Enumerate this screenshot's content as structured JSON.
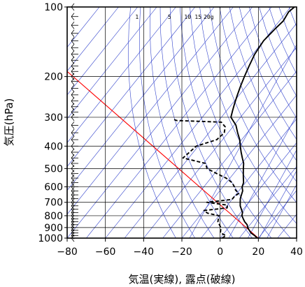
{
  "chart_data": {
    "type": "skew-t",
    "xlabel": "気温(実線), 露点(破線)",
    "ylabel": "気圧(hPa)",
    "xlim": [
      -80,
      40
    ],
    "ylim": [
      1000,
      100
    ],
    "y_scale": "log",
    "x_ticks": [
      -80,
      -60,
      -40,
      -20,
      0,
      20,
      40
    ],
    "x_tick_labels": [
      "−80",
      "−60",
      "−40",
      "−20",
      "0",
      "20",
      "40"
    ],
    "y_ticks": [
      100,
      200,
      300,
      400,
      500,
      600,
      700,
      800,
      900,
      1000
    ],
    "y_tick_labels": [
      "100",
      "200",
      "300",
      "400",
      "500",
      "600",
      "700",
      "800",
      "900",
      "1000"
    ],
    "mixing_ratio_labels": [
      "1",
      "5",
      "10",
      "15",
      "20g"
    ],
    "series": [
      {
        "style": "solid",
        "points": [
          [
            1000,
            19.5
          ],
          [
            975,
            17
          ],
          [
            950,
            14
          ],
          [
            925,
            12
          ],
          [
            900,
            10
          ],
          [
            875,
            8.5
          ],
          [
            850,
            6
          ],
          [
            825,
            4
          ],
          [
            800,
            2
          ],
          [
            775,
            1
          ],
          [
            750,
            -1
          ],
          [
            725,
            -3
          ],
          [
            700,
            -4.5
          ],
          [
            675,
            -6
          ],
          [
            650,
            -7
          ],
          [
            625,
            -8
          ],
          [
            600,
            -10
          ],
          [
            575,
            -11
          ],
          [
            550,
            -13
          ],
          [
            525,
            -15
          ],
          [
            500,
            -17
          ],
          [
            475,
            -19
          ],
          [
            450,
            -22
          ],
          [
            425,
            -25
          ],
          [
            400,
            -28
          ],
          [
            375,
            -31
          ],
          [
            350,
            -35
          ],
          [
            325,
            -39
          ],
          [
            300,
            -45
          ],
          [
            280,
            -47
          ],
          [
            260,
            -49
          ],
          [
            240,
            -51
          ],
          [
            220,
            -53
          ],
          [
            200,
            -55
          ],
          [
            180,
            -57
          ],
          [
            160,
            -59
          ],
          [
            140,
            -60
          ],
          [
            125,
            -59
          ],
          [
            115,
            -58
          ],
          [
            105,
            -59
          ],
          [
            100,
            -58
          ]
        ]
      },
      {
        "style": "dashed",
        "points": [
          [
            1000,
            1
          ],
          [
            975,
            2
          ],
          [
            950,
            -2
          ],
          [
            925,
            -3
          ],
          [
            900,
            -4
          ],
          [
            875,
            -6
          ],
          [
            850,
            -8
          ],
          [
            825,
            -9
          ],
          [
            800,
            -10
          ],
          [
            780,
            -17
          ],
          [
            760,
            -20
          ],
          [
            740,
            -9
          ],
          [
            720,
            -10
          ],
          [
            700,
            -22
          ],
          [
            680,
            -10
          ],
          [
            660,
            -10
          ],
          [
            640,
            -9
          ],
          [
            620,
            -12
          ],
          [
            600,
            -14
          ],
          [
            575,
            -17
          ],
          [
            550,
            -22
          ],
          [
            525,
            -29
          ],
          [
            500,
            -36
          ],
          [
            475,
            -39
          ],
          [
            450,
            -53
          ],
          [
            400,
            -51
          ],
          [
            375,
            -43
          ],
          [
            350,
            -42
          ],
          [
            330,
            -44
          ],
          [
            315,
            -48
          ],
          [
            310,
            -72
          ],
          [
            305,
            -75
          ]
        ]
      }
    ],
    "wind_barb_levels": [
      1000,
      975,
      950,
      925,
      900,
      875,
      850,
      825,
      800,
      775,
      750,
      725,
      700,
      675,
      650,
      625,
      600,
      575,
      550,
      525,
      500,
      475,
      450,
      425,
      400,
      375,
      350,
      325,
      300,
      285,
      270,
      255,
      240,
      225,
      210,
      200,
      190,
      180,
      170,
      160,
      150,
      140,
      130,
      120,
      110,
      100
    ],
    "colors": {
      "temperature": "#000000",
      "dewpoint": "#000000",
      "guides": "#3344cc",
      "reference": "#ff0000",
      "grid": "#000000"
    }
  }
}
